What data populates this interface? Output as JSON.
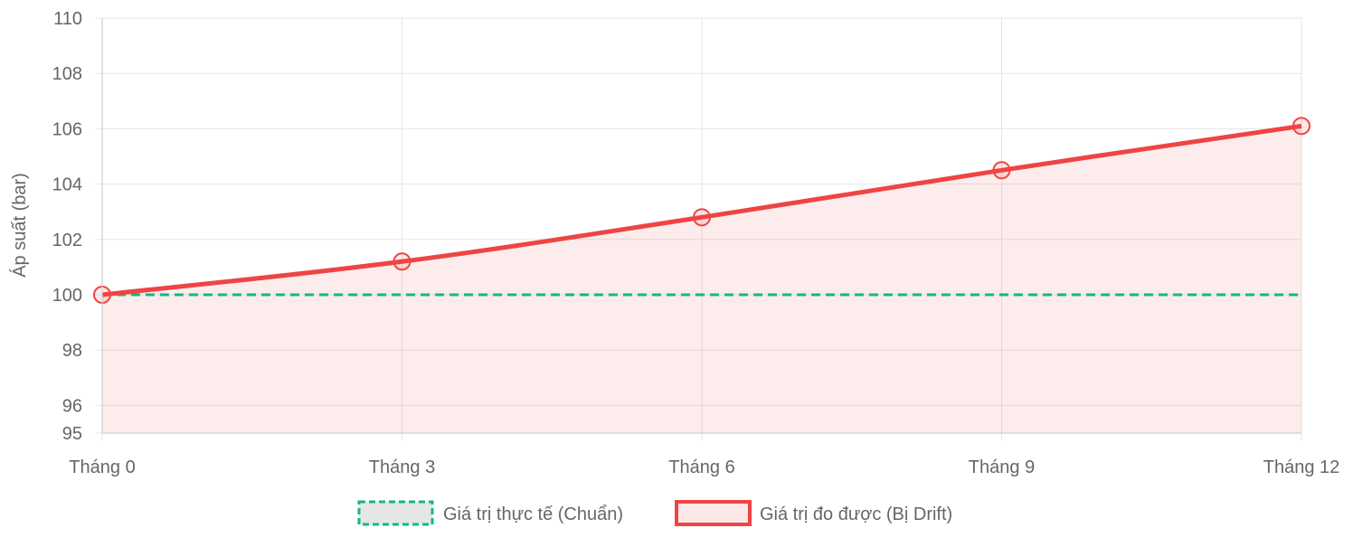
{
  "chart_data": {
    "type": "line",
    "categories": [
      "Tháng 0",
      "Tháng 3",
      "Tháng 6",
      "Tháng 9",
      "Tháng 12"
    ],
    "ylabel": "Áp suất (bar)",
    "ylim": [
      95,
      110
    ],
    "yticks": [
      95,
      96,
      98,
      100,
      102,
      104,
      106,
      108,
      110
    ],
    "grid": true,
    "legend_position": "bottom",
    "series": [
      {
        "name": "Giá trị thực tế (Chuẩn)",
        "values": [
          100,
          100,
          100,
          100,
          100
        ],
        "color": "#10b981",
        "style": "dashed",
        "legend_fill": "#e6e6e6"
      },
      {
        "name": "Giá trị đo được (Bị Drift)",
        "values": [
          100,
          101.2,
          102.8,
          104.5,
          106.1
        ],
        "color": "#ef4444",
        "style": "solid",
        "fill": "rgba(239,68,68,0.1)",
        "legend_fill": "#fce8e8"
      }
    ]
  }
}
